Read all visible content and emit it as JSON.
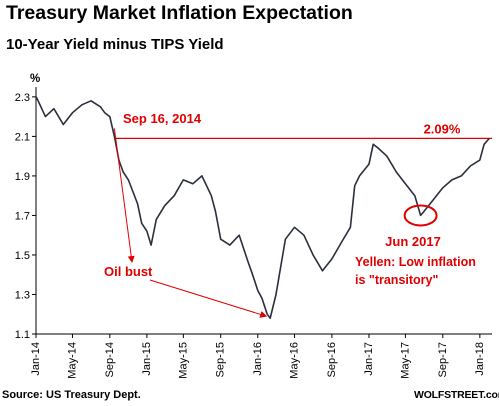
{
  "header": {
    "title": "Treasury Market Inflation Expectation",
    "subtitle": "10-Year Yield minus TIPS Yield"
  },
  "footer": {
    "source": "Source: US Treasury Dept.",
    "brand": "WOLFSTREET.com"
  },
  "colors": {
    "line": "#2a2f3e",
    "annotation": "#e00000",
    "axis": "#000000"
  },
  "chart_data": {
    "type": "line",
    "unit_label": "%",
    "ylim": [
      1.1,
      2.35
    ],
    "y_ticks": [
      "1.1",
      "1.3",
      "1.5",
      "1.7",
      "1.9",
      "2.1",
      "2.3"
    ],
    "x_tick_labels": [
      "Jan-14",
      "May-14",
      "Sep-14",
      "Jan-15",
      "May-15",
      "Sep-15",
      "Jan-16",
      "May-16",
      "Sep-16",
      "Jan-17",
      "May-17",
      "Sep-17",
      "Jan-18"
    ],
    "grid": false,
    "legend": "none",
    "series": [
      {
        "x": [
          "2014-01-02",
          "2014-02-01",
          "2014-03-01",
          "2014-04-01",
          "2014-05-01",
          "2014-06-01",
          "2014-07-01",
          "2014-08-01",
          "2014-08-15",
          "2014-09-01",
          "2014-09-16",
          "2014-10-01",
          "2014-10-15",
          "2014-11-01",
          "2014-12-01",
          "2014-12-15",
          "2015-01-01",
          "2015-01-15",
          "2015-02-01",
          "2015-03-01",
          "2015-04-01",
          "2015-05-01",
          "2015-06-01",
          "2015-07-01",
          "2015-08-01",
          "2015-08-15",
          "2015-09-01",
          "2015-10-01",
          "2015-11-01",
          "2015-12-01",
          "2015-12-15",
          "2016-01-01",
          "2016-01-15",
          "2016-02-01",
          "2016-02-11",
          "2016-03-01",
          "2016-04-01",
          "2016-05-01",
          "2016-06-01",
          "2016-07-01",
          "2016-08-01",
          "2016-09-01",
          "2016-10-01",
          "2016-11-01",
          "2016-11-15",
          "2016-12-01",
          "2017-01-01",
          "2017-01-15",
          "2017-02-01",
          "2017-03-01",
          "2017-04-01",
          "2017-05-01",
          "2017-06-01",
          "2017-06-20",
          "2017-07-01",
          "2017-08-01",
          "2017-09-01",
          "2017-10-01",
          "2017-11-01",
          "2017-12-01",
          "2018-01-01",
          "2018-01-15",
          "2018-02-01"
        ],
        "y": [
          2.3,
          2.2,
          2.24,
          2.16,
          2.22,
          2.26,
          2.28,
          2.25,
          2.22,
          2.2,
          2.1,
          1.98,
          1.92,
          1.88,
          1.76,
          1.66,
          1.62,
          1.55,
          1.68,
          1.75,
          1.8,
          1.88,
          1.86,
          1.9,
          1.8,
          1.72,
          1.58,
          1.55,
          1.6,
          1.46,
          1.4,
          1.32,
          1.28,
          1.2,
          1.18,
          1.3,
          1.58,
          1.64,
          1.6,
          1.5,
          1.42,
          1.48,
          1.56,
          1.64,
          1.85,
          1.9,
          1.96,
          2.06,
          2.04,
          2.0,
          1.92,
          1.86,
          1.8,
          1.7,
          1.72,
          1.78,
          1.84,
          1.88,
          1.9,
          1.95,
          1.98,
          2.06,
          2.09
        ]
      }
    ],
    "reference_line": {
      "y": 2.09,
      "label": "2.09%"
    },
    "annotations": [
      {
        "text": "Sep 16, 2014"
      },
      {
        "text": "Oil bust"
      },
      {
        "text": "Jun 2017"
      },
      {
        "text": "Yellen: Low inflation"
      },
      {
        "text": "is \"transitory\""
      }
    ]
  }
}
